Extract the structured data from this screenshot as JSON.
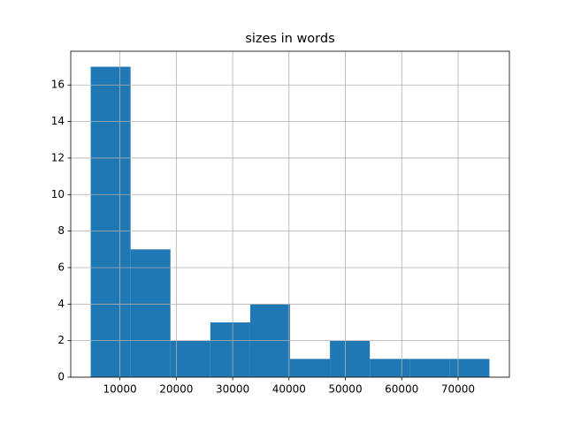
{
  "chart_data": {
    "type": "histogram",
    "title": "sizes in words",
    "bins": [
      4810,
      11886,
      18962,
      26038,
      33114,
      40190,
      47266,
      54342,
      61418,
      68494,
      75570
    ],
    "counts": [
      17,
      7,
      2,
      3,
      4,
      1,
      2,
      1,
      1,
      1
    ],
    "color": "#1f77b4",
    "xlim": [
      1272,
      79108
    ],
    "xticks": [
      10000,
      20000,
      30000,
      40000,
      50000,
      60000,
      70000
    ],
    "ylim": [
      0,
      17.85
    ],
    "yticks": [
      0,
      2,
      4,
      6,
      8,
      10,
      12,
      14,
      16
    ],
    "grid": true
  }
}
